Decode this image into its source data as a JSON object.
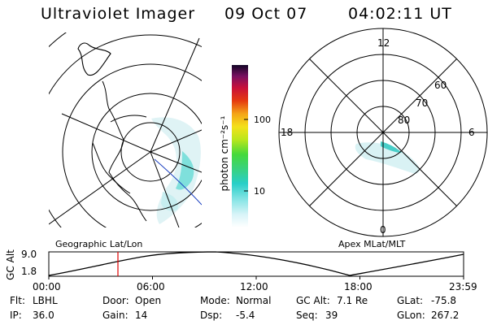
{
  "header": {
    "instrument": "Ultraviolet Imager",
    "date": "09 Oct 07",
    "time": "04:02:11 UT"
  },
  "colorbar": {
    "unit_label": "photon cm⁻²s⁻¹",
    "ticks": [
      "100",
      "10"
    ]
  },
  "mlt_plot": {
    "hour_labels": {
      "top": "12",
      "left": "18",
      "right": "6",
      "bottom": "0"
    },
    "lat_labels": [
      "60",
      "70",
      "80"
    ]
  },
  "map_labels": {
    "geographic": "Geographic Lat/Lon",
    "apex": "Apex MLat/MLT"
  },
  "altitude_plot": {
    "ylabel": "GC Alt",
    "ytick_top": "9.0",
    "ytick_bottom": "1.8",
    "xticks": [
      "00:00",
      "06:00",
      "12:00",
      "18:00",
      "23:59"
    ]
  },
  "status": {
    "flt_label": "Flt:",
    "flt_value": "LBHL",
    "ip_label": "IP:",
    "ip_value": "36.0",
    "door_label": "Door:",
    "door_value": "Open",
    "gain_label": "Gain:",
    "gain_value": "14",
    "mode_label": "Mode:",
    "mode_value": "Normal",
    "dsp_label": "Dsp:",
    "dsp_value": "-5.4",
    "gcalt_label": "GC Alt:",
    "gcalt_value": "7.1 Re",
    "seq_label": "Seq:",
    "seq_value": "39",
    "glat_label": "GLat:",
    "glat_value": "-75.8",
    "glon_label": "GLon:",
    "glon_value": "267.2"
  }
}
